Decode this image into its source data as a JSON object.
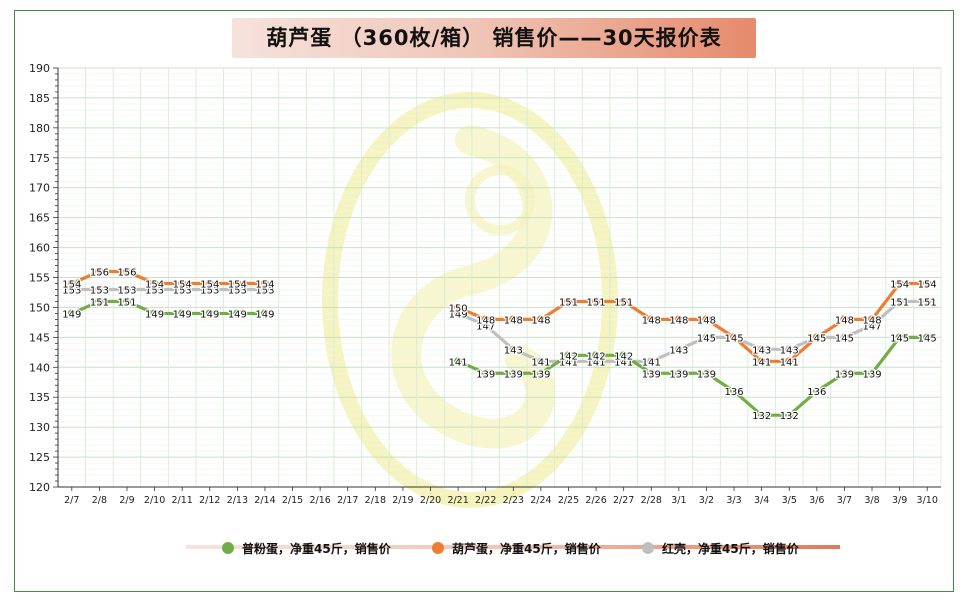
{
  "chart_data": {
    "type": "line",
    "title": "葫芦蛋 （360枚/箱） 销售价——30天报价表",
    "ylim": [
      120,
      190
    ],
    "y_ticks": [
      120,
      125,
      130,
      135,
      140,
      145,
      150,
      155,
      160,
      165,
      170,
      175,
      180,
      185,
      190
    ],
    "grid": true,
    "legend_position": "bottom",
    "categories": [
      "2/7",
      "2/8",
      "2/9",
      "2/10",
      "2/11",
      "2/12",
      "2/13",
      "2/14",
      "2/15",
      "2/16",
      "2/17",
      "2/18",
      "2/19",
      "2/20",
      "2/21",
      "2/22",
      "2/23",
      "2/24",
      "2/25",
      "2/26",
      "2/27",
      "2/28",
      "3/1",
      "3/2",
      "3/3",
      "3/4",
      "3/5",
      "3/6",
      "3/7",
      "3/8",
      "3/9",
      "3/10"
    ],
    "series": [
      {
        "name": "普粉蛋，净重45斤，销售价",
        "color": "#70ad47",
        "values": [
          149,
          151,
          151,
          149,
          149,
          149,
          149,
          149,
          null,
          null,
          null,
          null,
          null,
          null,
          141,
          139,
          139,
          139,
          142,
          142,
          142,
          139,
          139,
          139,
          136,
          132,
          132,
          136,
          139,
          139,
          145,
          145
        ]
      },
      {
        "name": "葫芦蛋，净重45斤，销售价",
        "color": "#ed7d31",
        "values": [
          154,
          156,
          156,
          154,
          154,
          154,
          154,
          154,
          null,
          null,
          null,
          null,
          null,
          null,
          150,
          148,
          148,
          148,
          151,
          151,
          151,
          148,
          148,
          148,
          145,
          141,
          141,
          145,
          148,
          148,
          154,
          154
        ]
      },
      {
        "name": "红壳，净重45斤，销售价",
        "color": "#bfbfbf",
        "values": [
          153,
          153,
          153,
          153,
          153,
          153,
          153,
          153,
          null,
          null,
          null,
          null,
          null,
          null,
          149,
          147,
          143,
          141,
          141,
          141,
          141,
          141,
          143,
          145,
          145,
          143,
          143,
          145,
          145,
          147,
          151,
          151
        ]
      }
    ]
  }
}
